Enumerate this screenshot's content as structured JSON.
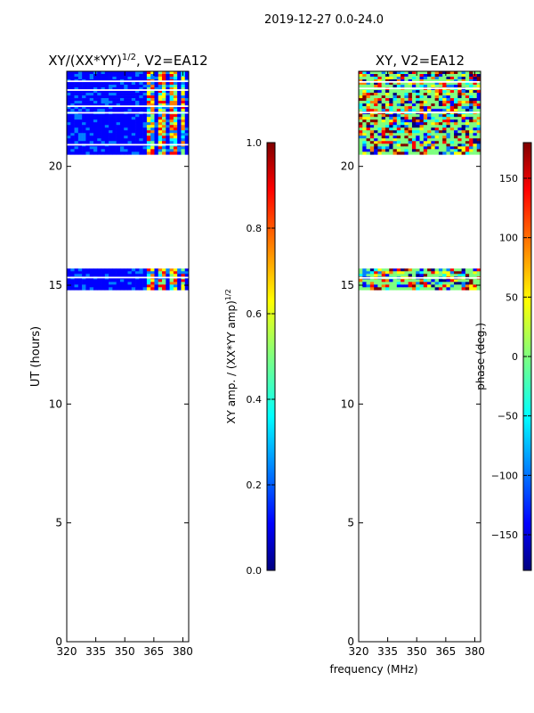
{
  "figure_title": "2019-12-27 0.0-24.0",
  "chart_data": [
    {
      "type": "heatmap",
      "title": "XY/(XX*YY)",
      "title_power": "1/2",
      "title_suffix": ", V2=EA12",
      "xlabel": "",
      "ylabel": "UT (hours)",
      "xlim": [
        320,
        383
      ],
      "ylim": [
        0,
        24
      ],
      "xticks": [
        320,
        335,
        350,
        365,
        380
      ],
      "yticks": [
        0,
        5,
        10,
        15,
        20
      ],
      "data_bands_hours": [
        [
          20.5,
          24.0
        ],
        [
          14.8,
          15.7
        ]
      ],
      "colorbar": {
        "label": "XY amp. / (XX*YY amp)",
        "label_power": "1/2",
        "range": [
          0.0,
          1.0
        ],
        "ticks": [
          "0.0",
          "0.2",
          "0.4",
          "0.6",
          "0.8",
          "1.0"
        ],
        "colormap": "jet"
      }
    },
    {
      "type": "heatmap",
      "title": "XY, V2=EA12",
      "xlabel": "frequency (MHz)",
      "ylabel": "",
      "xlim": [
        320,
        383
      ],
      "ylim": [
        0,
        24
      ],
      "xticks": [
        320,
        335,
        350,
        365,
        380
      ],
      "yticks": [
        0,
        5,
        10,
        15,
        20
      ],
      "data_bands_hours": [
        [
          20.5,
          24.0
        ],
        [
          14.8,
          15.7
        ]
      ],
      "colorbar": {
        "label": "phase (deg.)",
        "range": [
          -180,
          180
        ],
        "ticks": [
          "−150",
          "−100",
          "−50",
          "0",
          "50",
          "100",
          "150"
        ],
        "colormap": "jet"
      }
    }
  ],
  "colors": {
    "jet": [
      "#00007f",
      "#0000ff",
      "#007fff",
      "#00ffff",
      "#7fff7f",
      "#ffff00",
      "#ff7f00",
      "#ff0000",
      "#7f0000"
    ]
  }
}
